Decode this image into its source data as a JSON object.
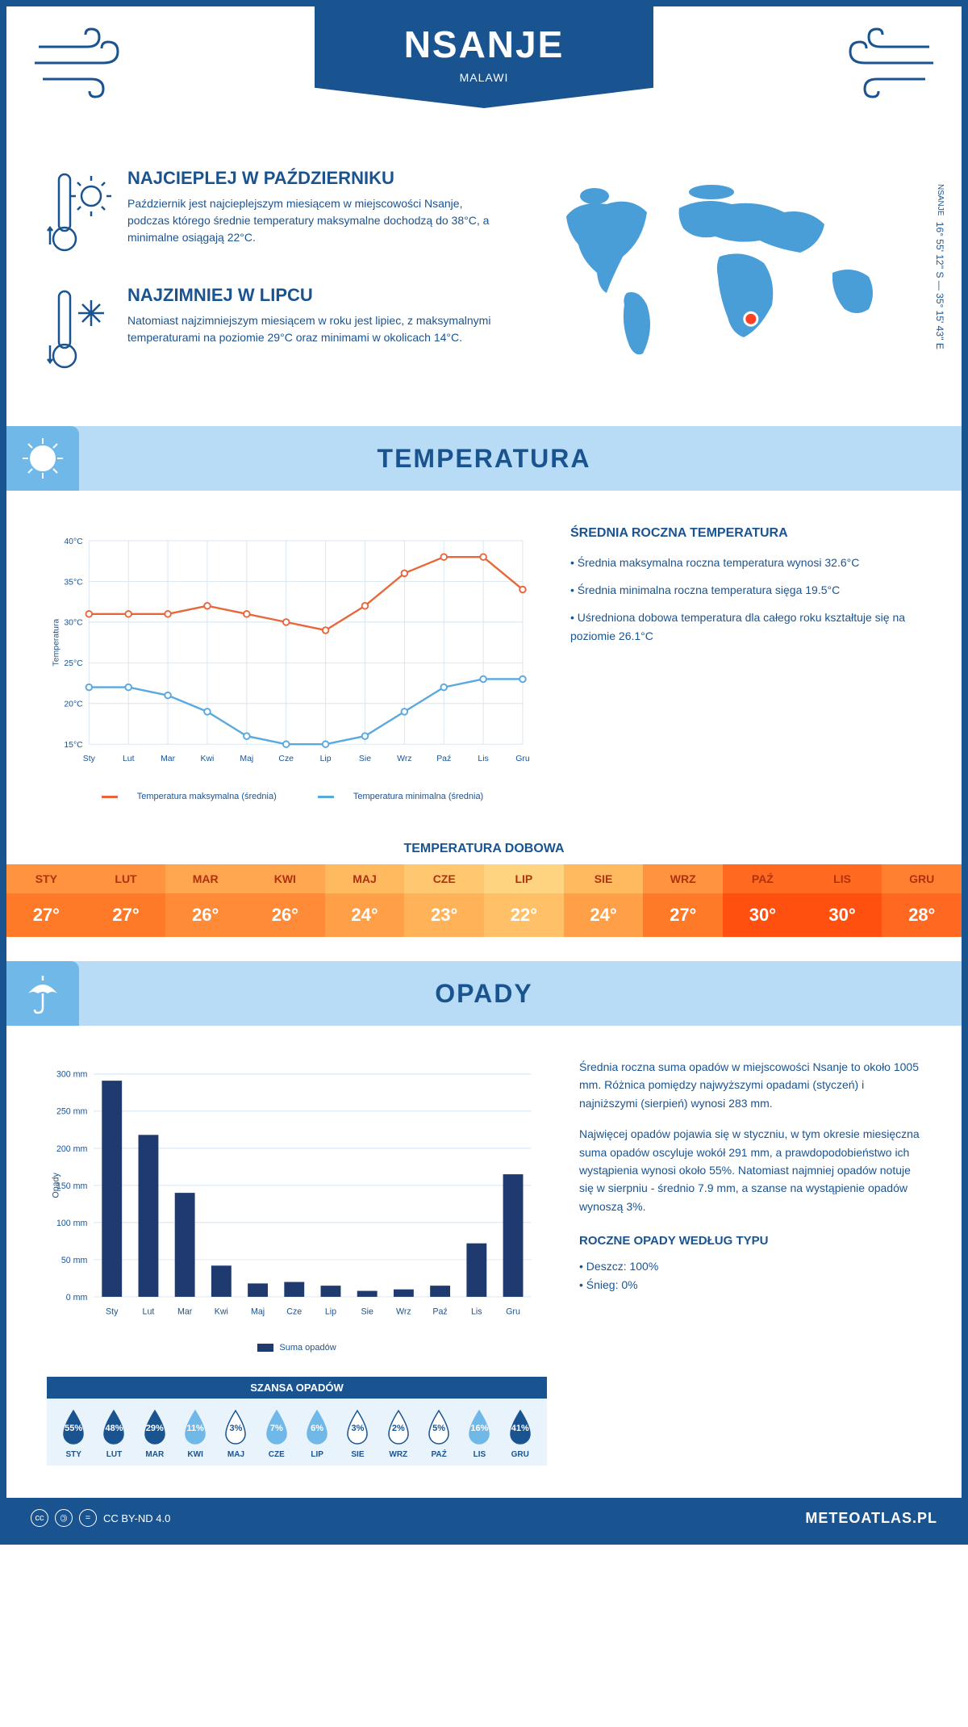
{
  "header": {
    "city": "NSANJE",
    "country": "MALAWI",
    "coords_label": "NSANJE",
    "coords": "16° 55' 12'' S — 35° 15' 43'' E"
  },
  "colors": {
    "primary": "#1a5490",
    "light_blue": "#b8dcf5",
    "mid_blue": "#6fb8e8",
    "accent_blue": "#4a9ed8",
    "max_line": "#e8673a",
    "min_line": "#5aa8e0",
    "bar_fill": "#1f3a6e",
    "grid": "#d8e4ef"
  },
  "intro": {
    "hot": {
      "title": "NAJCIEPLEJ W PAŹDZIERNIKU",
      "text": "Październik jest najcieplejszym miesiącem w miejscowości Nsanje, podczas którego średnie temperatury maksymalne dochodzą do 38°C, a minimalne osiągają 22°C."
    },
    "cold": {
      "title": "NAJZIMNIEJ W LIPCU",
      "text": "Natomiast najzimniejszym miesiącem w roku jest lipiec, z maksymalnymi temperaturami na poziomie 29°C oraz minimami w okolicach 14°C."
    }
  },
  "map_marker": {
    "cx_pct": 56,
    "cy_pct": 72
  },
  "temp_section": {
    "title": "TEMPERATURA",
    "chart": {
      "months": [
        "Sty",
        "Lut",
        "Mar",
        "Kwi",
        "Maj",
        "Cze",
        "Lip",
        "Sie",
        "Wrz",
        "Paź",
        "Lis",
        "Gru"
      ],
      "ylabel": "Temperatura",
      "ymin": 15,
      "ymax": 40,
      "ystep": 5,
      "yunit": "°C",
      "max_series": [
        31,
        31,
        31,
        32,
        31,
        30,
        29,
        32,
        36,
        38,
        38,
        34
      ],
      "min_series": [
        22,
        22,
        21,
        19,
        16,
        15,
        15,
        16,
        19,
        22,
        23,
        23
      ],
      "legend_max": "Temperatura maksymalna (średnia)",
      "legend_min": "Temperatura minimalna (średnia)"
    },
    "stats": {
      "heading": "ŚREDNIA ROCZNA TEMPERATURA",
      "b1": "• Średnia maksymalna roczna temperatura wynosi 32.6°C",
      "b2": "• Średnia minimalna roczna temperatura sięga 19.5°C",
      "b3": "• Uśredniona dobowa temperatura dla całego roku kształtuje się na poziomie 26.1°C"
    },
    "daily": {
      "title": "TEMPERATURA DOBOWA",
      "months": [
        "STY",
        "LUT",
        "MAR",
        "KWI",
        "MAJ",
        "CZE",
        "LIP",
        "SIE",
        "WRZ",
        "PAŹ",
        "LIS",
        "GRU"
      ],
      "values": [
        "27°",
        "27°",
        "26°",
        "26°",
        "24°",
        "23°",
        "22°",
        "24°",
        "27°",
        "30°",
        "30°",
        "28°"
      ],
      "head_colors": [
        "#ff9340",
        "#ff9340",
        "#ffa650",
        "#ffa650",
        "#ffba60",
        "#ffc870",
        "#ffd480",
        "#ffba60",
        "#ff9340",
        "#ff6a20",
        "#ff6a20",
        "#ff8030"
      ],
      "row_colors": [
        "#ff7a28",
        "#ff7a28",
        "#ff8a38",
        "#ff8a38",
        "#ffa048",
        "#ffb258",
        "#ffc068",
        "#ffa048",
        "#ff7a28",
        "#ff5010",
        "#ff5010",
        "#ff6820"
      ]
    }
  },
  "precip_section": {
    "title": "OPADY",
    "chart": {
      "months": [
        "Sty",
        "Lut",
        "Mar",
        "Kwi",
        "Maj",
        "Cze",
        "Lip",
        "Sie",
        "Wrz",
        "Paź",
        "Lis",
        "Gru"
      ],
      "ylabel": "Opady",
      "ymin": 0,
      "ymax": 300,
      "ystep": 50,
      "yunit": " mm",
      "values": [
        291,
        218,
        140,
        42,
        18,
        20,
        15,
        8,
        10,
        15,
        72,
        165
      ],
      "legend": "Suma opadów"
    },
    "text": {
      "p1": "Średnia roczna suma opadów w miejscowości Nsanje to około 1005 mm. Różnica pomiędzy najwyższymi opadami (styczeń) i najniższymi (sierpień) wynosi 283 mm.",
      "p2": "Najwięcej opadów pojawia się w styczniu, w tym okresie miesięczna suma opadów oscyluje wokół 291 mm, a prawdopodobieństwo ich wystąpienia wynosi około 55%. Natomiast najmniej opadów notuje się w sierpniu - średnio 7.9 mm, a szanse na wystąpienie opadów wynoszą 3%.",
      "type_heading": "ROCZNE OPADY WEDŁUG TYPU",
      "type_rain": "• Deszcz: 100%",
      "type_snow": "• Śnieg: 0%"
    },
    "chance": {
      "title": "SZANSA OPADÓW",
      "months": [
        "STY",
        "LUT",
        "MAR",
        "KWI",
        "MAJ",
        "CZE",
        "LIP",
        "SIE",
        "WRZ",
        "PAŹ",
        "LIS",
        "GRU"
      ],
      "values": [
        "55%",
        "48%",
        "29%",
        "11%",
        "3%",
        "7%",
        "6%",
        "3%",
        "2%",
        "5%",
        "16%",
        "41%"
      ],
      "fills": [
        "#1a5490",
        "#1a5490",
        "#1a5490",
        "#6fb8e8",
        "#ffffff",
        "#6fb8e8",
        "#6fb8e8",
        "#ffffff",
        "#ffffff",
        "#ffffff",
        "#6fb8e8",
        "#1a5490"
      ],
      "text_colors": [
        "#fff",
        "#fff",
        "#fff",
        "#fff",
        "#1a5490",
        "#fff",
        "#fff",
        "#1a5490",
        "#1a5490",
        "#1a5490",
        "#fff",
        "#fff"
      ]
    }
  },
  "footer": {
    "license": "CC BY-ND 4.0",
    "site": "METEOATLAS.PL"
  }
}
